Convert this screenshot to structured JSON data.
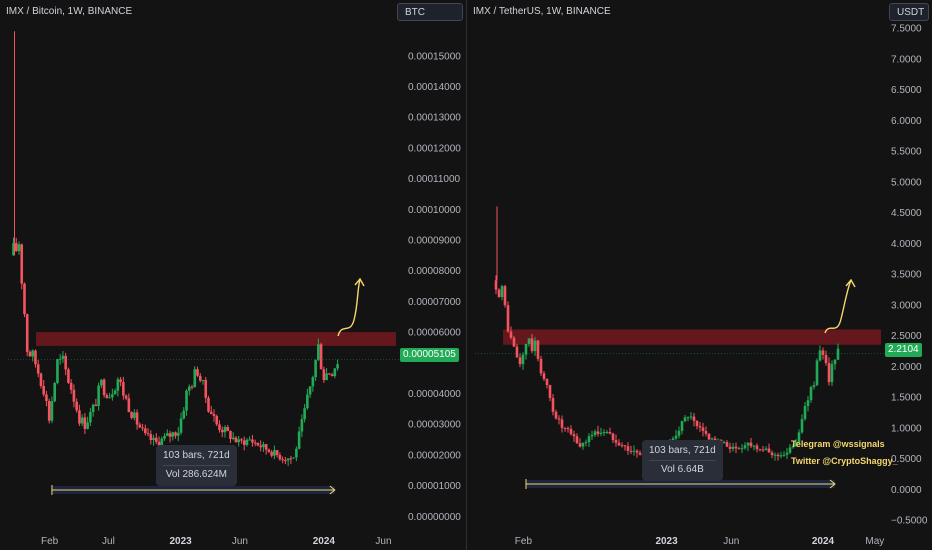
{
  "panels": [
    {
      "title": "IMX / Bitcoin, 1W, BINANCE",
      "currency": "BTC",
      "last_price": "0.00005105",
      "measure": {
        "bars": "103 bars, 721d",
        "vol": "Vol 286.624M"
      },
      "y_ticks": [
        "0.00015000",
        "0.00014000",
        "0.00013000",
        "0.00012000",
        "0.00011000",
        "0.00010000",
        "0.00009000",
        "0.00008000",
        "0.00007000",
        "0.00006000",
        "0.00004000",
        "0.00003000",
        "0.00002000",
        "0.00001000",
        "0.00000000"
      ],
      "x_ticks": [
        {
          "label": "Feb",
          "bold": false
        },
        {
          "label": "Jul",
          "bold": false
        },
        {
          "label": "2023",
          "bold": true
        },
        {
          "label": "Jun",
          "bold": false
        },
        {
          "label": "2024",
          "bold": true
        },
        {
          "label": "Jun",
          "bold": false
        }
      ],
      "credits": []
    },
    {
      "title": "IMX / TetherUS, 1W, BINANCE",
      "currency": "USDT",
      "last_price": "2.2104",
      "measure": {
        "bars": "103 bars, 721d",
        "vol": "Vol 6.64B"
      },
      "y_ticks": [
        "7.5000",
        "7.0000",
        "6.5000",
        "6.0000",
        "5.5000",
        "5.0000",
        "4.5000",
        "4.0000",
        "3.5000",
        "3.0000",
        "2.5000",
        "2.0000",
        "1.5000",
        "1.0000",
        "0.5000",
        "0.0000",
        "−0.5000"
      ],
      "x_ticks": [
        {
          "label": "Feb",
          "bold": false
        },
        {
          "label": "2023",
          "bold": true
        },
        {
          "label": "Jun",
          "bold": false
        },
        {
          "label": "2024",
          "bold": true
        },
        {
          "label": "May",
          "bold": false
        }
      ],
      "credits": [
        "Telegram @wssignals",
        "Twitter @CryptoShaggy_"
      ]
    }
  ],
  "chart_data": [
    {
      "type": "candlestick",
      "title": "IMX / Bitcoin, 1W, BINANCE",
      "y_unit": "BTC",
      "ylim": [
        -1.2e-06,
        0.000161
      ],
      "last_price": 5.105e-05,
      "resistance_zone": [
        5.55e-05,
        6e-05
      ],
      "up_color": "#22ab56",
      "down_color": "#f7525f",
      "zone_color": "#801922",
      "arrow_color": "#f5d76e",
      "close_path": [
        [
          "2021-11-01",
          8.5e-05
        ],
        [
          "2021-11-15",
          9e-05
        ],
        [
          "2021-12-06",
          5.5e-05
        ],
        [
          "2021-12-27",
          5e-05
        ],
        [
          "2022-01-17",
          4.2e-05
        ],
        [
          "2022-01-31",
          3.2e-05
        ],
        [
          "2022-02-21",
          5e-05
        ],
        [
          "2022-03-07",
          5e-05
        ],
        [
          "2022-03-28",
          4.2e-05
        ],
        [
          "2022-04-18",
          3.2e-05
        ],
        [
          "2022-05-02",
          3e-05
        ],
        [
          "2022-05-23",
          3.5e-05
        ],
        [
          "2022-06-13",
          4.3e-05
        ],
        [
          "2022-07-04",
          4e-05
        ],
        [
          "2022-07-25",
          4.5e-05
        ],
        [
          "2022-08-15",
          3.8e-05
        ],
        [
          "2022-09-05",
          3.2e-05
        ],
        [
          "2022-10-03",
          2.6e-05
        ],
        [
          "2022-10-31",
          2.4e-05
        ],
        [
          "2022-11-28",
          2.6e-05
        ],
        [
          "2022-12-26",
          2.8e-05
        ],
        [
          "2023-01-16",
          4e-05
        ],
        [
          "2023-02-13",
          4.8e-05
        ],
        [
          "2023-03-13",
          3.6e-05
        ],
        [
          "2023-04-03",
          3e-05
        ],
        [
          "2023-05-01",
          2.7e-05
        ],
        [
          "2023-05-29",
          2.4e-05
        ],
        [
          "2023-06-26",
          2.5e-05
        ],
        [
          "2023-07-24",
          2.3e-05
        ],
        [
          "2023-08-21",
          2.1e-05
        ],
        [
          "2023-09-18",
          1.9e-05
        ],
        [
          "2023-10-16",
          1.9e-05
        ],
        [
          "2023-11-06",
          3e-05
        ],
        [
          "2023-11-27",
          4.2e-05
        ],
        [
          "2023-12-18",
          5.5e-05
        ],
        [
          "2024-01-01",
          4.6e-05
        ],
        [
          "2024-01-22",
          4.8e-05
        ],
        [
          "2024-02-05",
          5.1e-05
        ]
      ],
      "measure_range": [
        "2022-02-07",
        "2024-01-29"
      ]
    },
    {
      "type": "candlestick",
      "title": "IMX / TetherUS, 1W, BINANCE",
      "y_unit": "USDT",
      "ylim": [
        -0.5,
        7.6
      ],
      "last_price": 2.2104,
      "resistance_zone": [
        2.35,
        2.6
      ],
      "up_color": "#22ab56",
      "down_color": "#f7525f",
      "zone_color": "#801922",
      "arrow_color": "#f5d76e",
      "close_path": [
        [
          "2021-11-29",
          3.4
        ],
        [
          "2021-12-13",
          3.2
        ],
        [
          "2022-01-03",
          2.4
        ],
        [
          "2022-01-24",
          2.0
        ],
        [
          "2022-02-07",
          2.4
        ],
        [
          "2022-02-28",
          2.3
        ],
        [
          "2022-03-21",
          1.8
        ],
        [
          "2022-04-11",
          1.3
        ],
        [
          "2022-05-02",
          1.0
        ],
        [
          "2022-05-23",
          0.9
        ],
        [
          "2022-06-13",
          0.7
        ],
        [
          "2022-07-11",
          0.9
        ],
        [
          "2022-08-08",
          0.95
        ],
        [
          "2022-09-05",
          0.8
        ],
        [
          "2022-10-03",
          0.65
        ],
        [
          "2022-11-07",
          0.55
        ],
        [
          "2022-12-05",
          0.5
        ],
        [
          "2023-01-02",
          0.65
        ],
        [
          "2023-01-30",
          1.0
        ],
        [
          "2023-02-20",
          1.2
        ],
        [
          "2023-03-13",
          1.0
        ],
        [
          "2023-04-10",
          0.85
        ],
        [
          "2023-05-08",
          0.75
        ],
        [
          "2023-06-12",
          0.65
        ],
        [
          "2023-07-10",
          0.75
        ],
        [
          "2023-08-14",
          0.65
        ],
        [
          "2023-09-11",
          0.55
        ],
        [
          "2023-10-09",
          0.58
        ],
        [
          "2023-10-30",
          0.8
        ],
        [
          "2023-11-20",
          1.3
        ],
        [
          "2023-12-11",
          1.8
        ],
        [
          "2023-12-25",
          2.2
        ],
        [
          "2024-01-15",
          1.85
        ],
        [
          "2024-02-05",
          2.21
        ]
      ],
      "measure_range": [
        "2022-02-07",
        "2024-01-29"
      ]
    }
  ]
}
